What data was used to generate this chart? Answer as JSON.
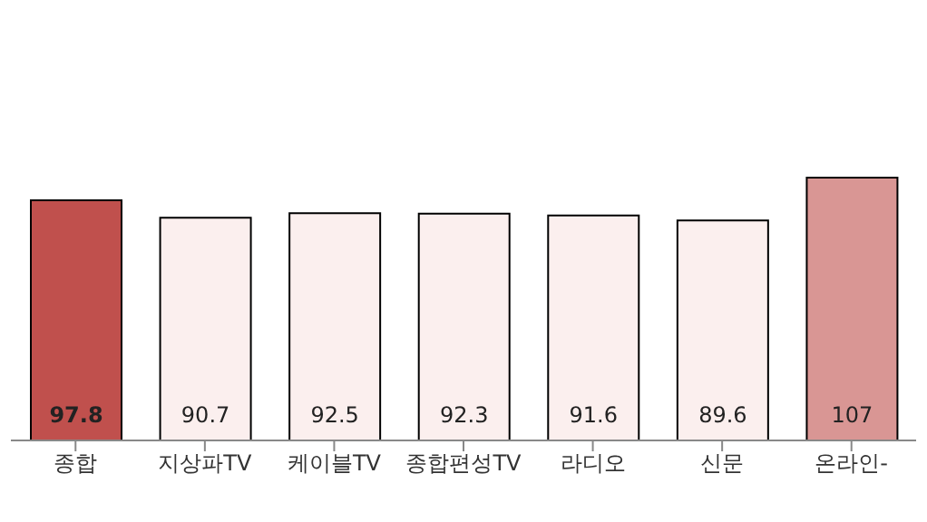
{
  "chart_data": {
    "type": "bar",
    "categories": [
      "종합",
      "지상파TV",
      "케이블TV",
      "종합편성TV",
      "라디오",
      "신문",
      "온라인-"
    ],
    "values": [
      97.8,
      90.7,
      92.5,
      92.3,
      91.6,
      89.6,
      107
    ],
    "colors": [
      "#c0504d",
      "#fbefee",
      "#fbefee",
      "#fbefee",
      "#fbefee",
      "#fbefee",
      "#d99694"
    ],
    "data_labels": true,
    "grid": false,
    "legend": false
  }
}
